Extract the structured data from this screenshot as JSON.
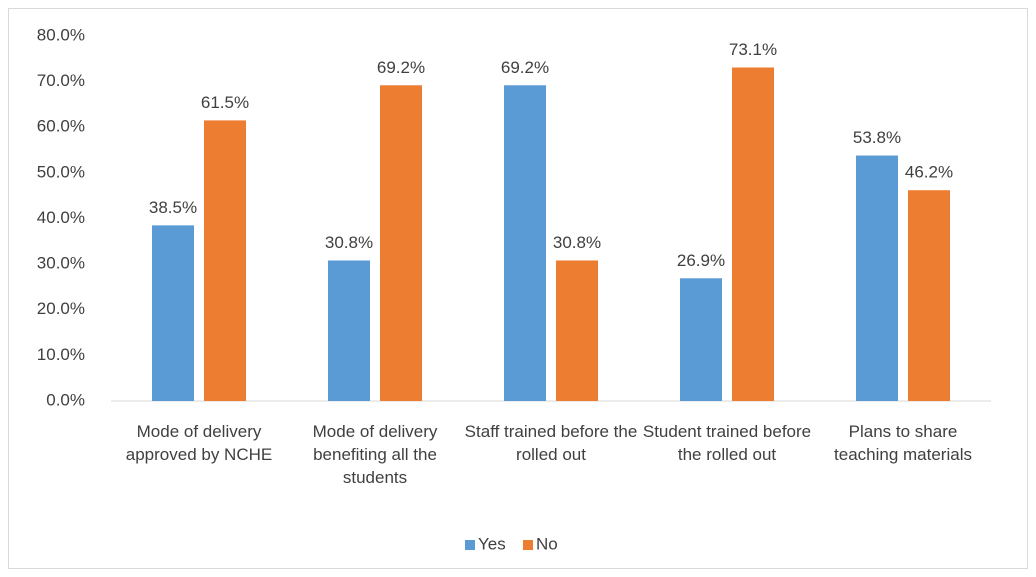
{
  "chart_data": {
    "type": "bar",
    "categories": [
      "Mode of delivery approved by NCHE",
      "Mode of delivery benefiting all the students",
      "Staff trained before the rolled out",
      "Student trained before the rolled out",
      "Plans to share teaching materials"
    ],
    "series": [
      {
        "name": "Yes",
        "color": "#5b9bd5",
        "values": [
          38.5,
          30.8,
          69.2,
          26.9,
          53.8
        ],
        "value_labels": [
          "38.5%",
          "30.8%",
          "69.2%",
          "26.9%",
          "53.8%"
        ]
      },
      {
        "name": "No",
        "color": "#ed7d31",
        "values": [
          61.5,
          69.2,
          30.8,
          73.1,
          46.2
        ],
        "value_labels": [
          "61.5%",
          "69.2%",
          "30.8%",
          "73.1%",
          "46.2%"
        ]
      }
    ],
    "ylim": [
      0,
      80
    ],
    "yticks": [
      {
        "value": 0,
        "label": "0.0%"
      },
      {
        "value": 10,
        "label": "10.0%"
      },
      {
        "value": 20,
        "label": "20.0%"
      },
      {
        "value": 30,
        "label": "30.0%"
      },
      {
        "value": 40,
        "label": "40.0%"
      },
      {
        "value": 50,
        "label": "50.0%"
      },
      {
        "value": 60,
        "label": "60.0%"
      },
      {
        "value": 70,
        "label": "70.0%"
      },
      {
        "value": 80,
        "label": "80.0%"
      }
    ],
    "grid": false,
    "legend": "bottom"
  }
}
